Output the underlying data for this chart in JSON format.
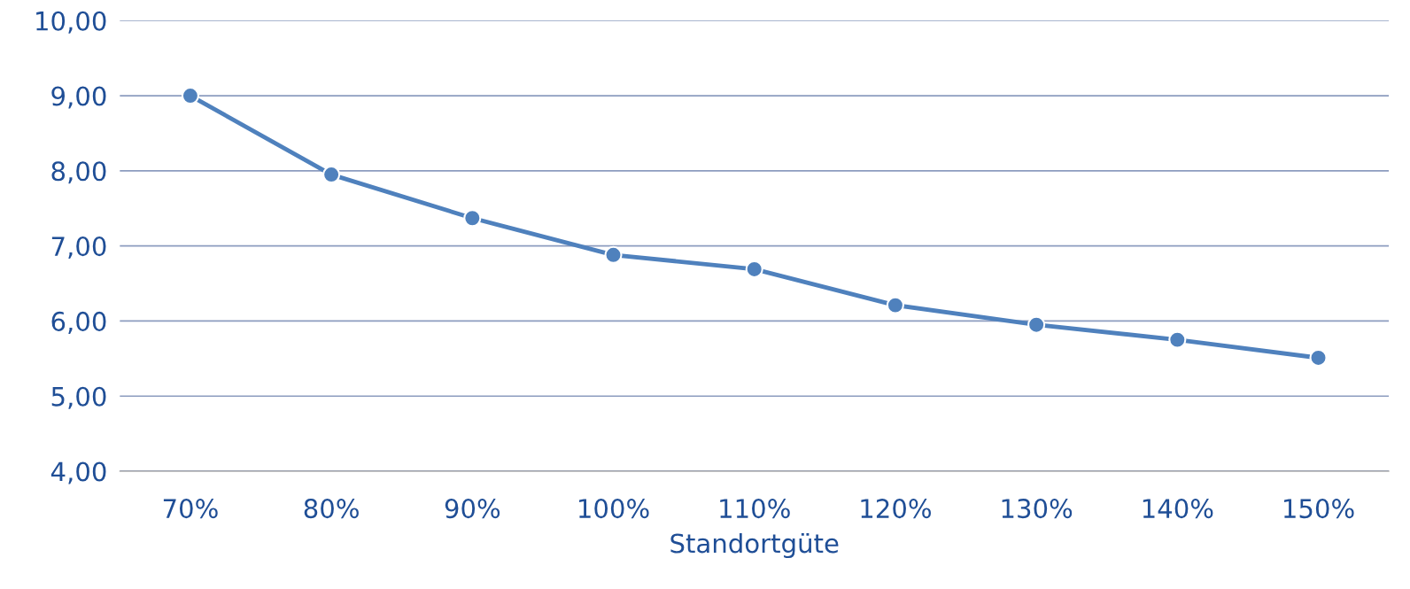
{
  "chart_data": {
    "type": "line",
    "xlabel": "Standortgüte",
    "categories": [
      "70%",
      "80%",
      "90%",
      "100%",
      "110%",
      "120%",
      "130%",
      "140%",
      "150%"
    ],
    "series": [
      {
        "color": "#4f81bd",
        "values": [
          9.0,
          7.95,
          7.37,
          6.88,
          6.69,
          6.21,
          5.95,
          5.75,
          5.51
        ]
      }
    ],
    "ylim": [
      4,
      10
    ],
    "yticks": [
      {
        "value": 4,
        "label": "4,00"
      },
      {
        "value": 5,
        "label": "5,00"
      },
      {
        "value": 6,
        "label": "6,00"
      },
      {
        "value": 7,
        "label": "7,00"
      },
      {
        "value": 8,
        "label": "8,00"
      },
      {
        "value": 9,
        "label": "9,00"
      },
      {
        "value": 10,
        "label": "10,00"
      }
    ],
    "grid": "y",
    "marker": "circle",
    "line_style": "solid"
  }
}
